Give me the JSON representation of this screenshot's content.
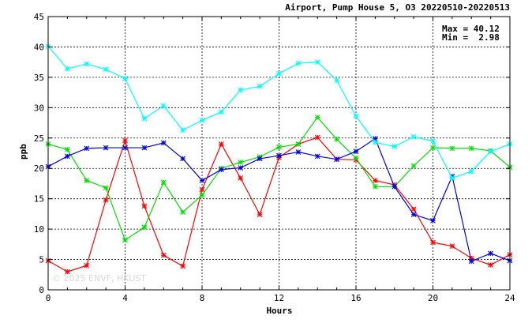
{
  "chart_data": {
    "type": "line",
    "title": "Airport, Pump House 5, O3 20220510-20220513",
    "xlabel": "Hours",
    "ylabel": "ppb",
    "xlim": [
      0,
      24
    ],
    "ylim": [
      0,
      45
    ],
    "x_ticks": [
      "0",
      "4",
      "8",
      "12",
      "16",
      "20",
      "24"
    ],
    "y_ticks": [
      "0",
      "5",
      "10",
      "15",
      "20",
      "25",
      "30",
      "35",
      "40",
      "45"
    ],
    "grid": true,
    "annotations": {
      "max_label": "Max = 40.12",
      "min_label": "Min =  2.98",
      "watermark": "© 2025 ENVF, HKUST"
    },
    "x": [
      0,
      1,
      2,
      3,
      4,
      5,
      6,
      7,
      8,
      9,
      10,
      11,
      12,
      13,
      14,
      15,
      16,
      17,
      18,
      19,
      20,
      21,
      22,
      23,
      24
    ],
    "series": [
      {
        "color": "#ff0000",
        "values": [
          4.8,
          2.98,
          4.0,
          14.8,
          24.6,
          13.8,
          5.7,
          3.9,
          16.5,
          24.0,
          18.4,
          12.4,
          21.8,
          24.0,
          25.1,
          21.5,
          21.4,
          18.0,
          17.3,
          13.3,
          7.8,
          7.2,
          5.2,
          4.1,
          5.8
        ]
      },
      {
        "color": "#00e000",
        "values": [
          24.0,
          23.1,
          18.0,
          16.8,
          8.2,
          10.3,
          17.7,
          12.8,
          15.6,
          20.0,
          21.0,
          21.9,
          23.5,
          24.0,
          28.4,
          24.8,
          21.7,
          17.0,
          17.0,
          20.4,
          23.4,
          23.3,
          23.3,
          22.9,
          20.2
        ]
      },
      {
        "color": "#0000e0",
        "values": [
          20.3,
          22.0,
          23.3,
          23.4,
          23.4,
          23.4,
          24.2,
          21.6,
          18.0,
          19.8,
          20.1,
          21.6,
          22.1,
          22.7,
          22.0,
          21.5,
          22.8,
          24.9,
          17.0,
          12.4,
          11.4,
          18.7,
          4.7,
          6.0,
          4.8
        ]
      },
      {
        "color": "#00ffff",
        "values": [
          40.12,
          36.4,
          37.2,
          36.3,
          34.8,
          28.2,
          30.3,
          26.3,
          27.9,
          29.3,
          32.9,
          33.5,
          35.6,
          37.3,
          37.5,
          34.5,
          28.6,
          24.3,
          23.6,
          25.2,
          24.5,
          18.4,
          19.5,
          22.8,
          24.0
        ]
      }
    ]
  }
}
